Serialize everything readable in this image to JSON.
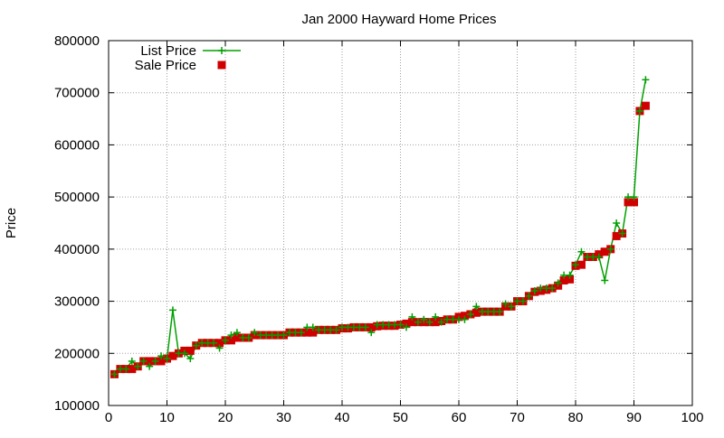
{
  "chart_data": {
    "type": "line",
    "title": "Jan 2000 Hayward Home Prices",
    "xlabel": "",
    "ylabel": "Price",
    "xlim": [
      0,
      100
    ],
    "ylim": [
      100000,
      800000
    ],
    "x_ticks": [
      "0",
      "10",
      "20",
      "30",
      "40",
      "50",
      "60",
      "70",
      "80",
      "90",
      "100"
    ],
    "y_ticks": [
      "100000",
      "200000",
      "300000",
      "400000",
      "500000",
      "600000",
      "700000",
      "800000"
    ],
    "grid": true,
    "legend_position": "top-left",
    "series": [
      {
        "name": "List Price",
        "style": "linespoints",
        "marker": "plus",
        "color": "#00a000",
        "x": [
          1,
          2,
          3,
          4,
          5,
          6,
          7,
          8,
          9,
          10,
          11,
          12,
          13,
          14,
          15,
          16,
          17,
          18,
          19,
          20,
          21,
          22,
          23,
          24,
          25,
          26,
          27,
          28,
          29,
          30,
          31,
          32,
          33,
          34,
          35,
          36,
          37,
          38,
          39,
          40,
          41,
          42,
          43,
          44,
          45,
          46,
          47,
          48,
          49,
          50,
          51,
          52,
          53,
          54,
          55,
          56,
          57,
          58,
          59,
          60,
          61,
          62,
          63,
          64,
          65,
          66,
          67,
          68,
          69,
          70,
          71,
          72,
          73,
          74,
          75,
          76,
          77,
          78,
          79,
          80,
          81,
          82,
          83,
          84,
          85,
          86,
          87,
          88,
          89,
          90,
          91,
          92
        ],
        "values": [
          160000,
          170000,
          170000,
          185000,
          175000,
          185000,
          175000,
          185000,
          195000,
          190000,
          283000,
          200000,
          200000,
          190000,
          215000,
          220000,
          220000,
          220000,
          210000,
          225000,
          235000,
          240000,
          230000,
          230000,
          240000,
          235000,
          235000,
          235000,
          235000,
          235000,
          240000,
          240000,
          240000,
          250000,
          250000,
          245000,
          245000,
          245000,
          245000,
          250000,
          250000,
          250000,
          250000,
          250000,
          240000,
          255000,
          255000,
          255000,
          255000,
          255000,
          250000,
          270000,
          260000,
          265000,
          260000,
          270000,
          260000,
          265000,
          265000,
          265000,
          265000,
          275000,
          290000,
          280000,
          280000,
          280000,
          280000,
          295000,
          290000,
          300000,
          300000,
          310000,
          320000,
          325000,
          325000,
          325000,
          335000,
          350000,
          350000,
          370000,
          395000,
          385000,
          385000,
          385000,
          340000,
          400000,
          450000,
          430000,
          500000,
          500000,
          665000,
          725000
        ]
      },
      {
        "name": "Sale Price",
        "style": "points",
        "marker": "square",
        "color": "#d00000",
        "x": [
          1,
          2,
          3,
          4,
          5,
          6,
          7,
          8,
          9,
          10,
          11,
          12,
          13,
          14,
          15,
          16,
          17,
          18,
          19,
          20,
          21,
          22,
          23,
          24,
          25,
          26,
          27,
          28,
          29,
          30,
          31,
          32,
          33,
          34,
          35,
          36,
          37,
          38,
          39,
          40,
          41,
          42,
          43,
          44,
          45,
          46,
          47,
          48,
          49,
          50,
          51,
          52,
          53,
          54,
          55,
          56,
          57,
          58,
          59,
          60,
          61,
          62,
          63,
          64,
          65,
          66,
          67,
          68,
          69,
          70,
          71,
          72,
          73,
          74,
          75,
          76,
          77,
          78,
          79,
          80,
          81,
          82,
          83,
          84,
          85,
          86,
          87,
          88,
          89,
          90,
          91,
          92
        ],
        "values": [
          160000,
          170000,
          170000,
          170000,
          175000,
          185000,
          185000,
          185000,
          185000,
          190000,
          195000,
          200000,
          205000,
          205000,
          215000,
          220000,
          220000,
          220000,
          220000,
          225000,
          225000,
          230000,
          230000,
          230000,
          235000,
          235000,
          235000,
          235000,
          235000,
          235000,
          240000,
          240000,
          240000,
          240000,
          240000,
          245000,
          245000,
          245000,
          245000,
          248000,
          248000,
          250000,
          250000,
          250000,
          250000,
          252000,
          253000,
          253000,
          253000,
          255000,
          257000,
          260000,
          260000,
          260000,
          260000,
          260000,
          262000,
          265000,
          265000,
          270000,
          272000,
          275000,
          278000,
          280000,
          280000,
          280000,
          280000,
          290000,
          290000,
          300000,
          300000,
          310000,
          318000,
          320000,
          322000,
          325000,
          330000,
          340000,
          342000,
          368000,
          370000,
          385000,
          385000,
          390000,
          395000,
          400000,
          425000,
          430000,
          490000,
          490000,
          665000,
          675000
        ]
      }
    ]
  }
}
